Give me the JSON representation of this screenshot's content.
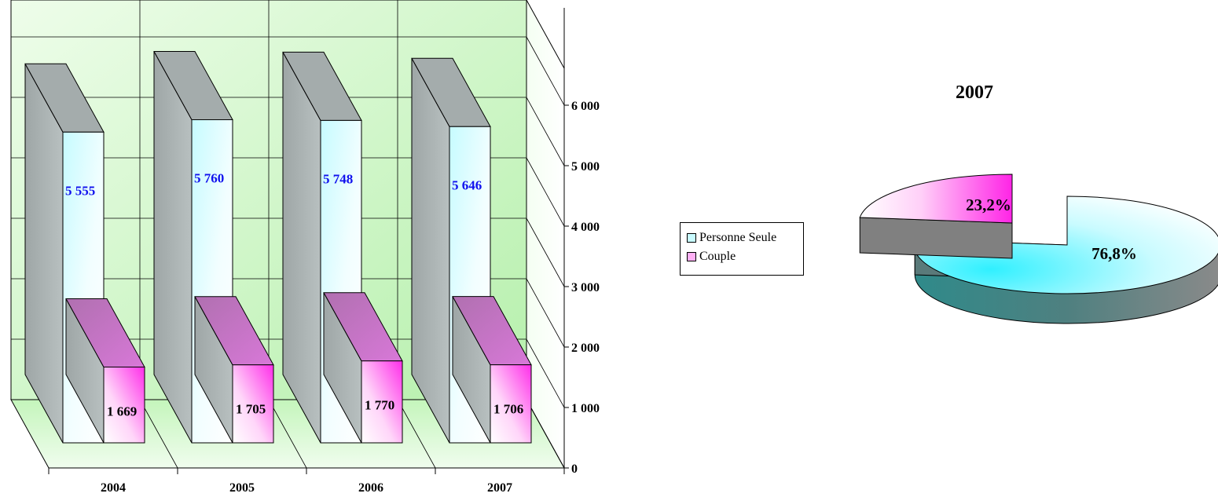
{
  "chart_data": [
    {
      "type": "bar",
      "categories": [
        "2004",
        "2005",
        "2006",
        "2007"
      ],
      "series": [
        {
          "name": "Personne Seule",
          "values": [
            5555,
            5760,
            5748,
            5646
          ],
          "labels": [
            "5 555",
            "5 760",
            "5 748",
            "5 646"
          ]
        },
        {
          "name": "Couple",
          "values": [
            1669,
            1705,
            1770,
            1706
          ],
          "labels": [
            "1 669",
            "1 705",
            "1 770",
            "1 706"
          ]
        }
      ],
      "yticks": [
        "0",
        "1 000",
        "2 000",
        "3 000",
        "4 000",
        "5 000",
        "6 000"
      ],
      "ylim": [
        0,
        6000
      ],
      "grid": true,
      "colors": {
        "personne": "#c8fbff",
        "couple": "#ff5cf0",
        "wall": "#b8f2b0",
        "side": "#a9a9a9"
      }
    },
    {
      "type": "pie",
      "title": "2007",
      "slices": [
        {
          "name": "Personne Seule",
          "value": 76.8,
          "label": "76,8%"
        },
        {
          "name": "Couple",
          "value": 23.2,
          "label": "23,2%"
        }
      ],
      "legend": "left",
      "colors": {
        "personne": "#3ff3ff",
        "couple": "#ff2ce8"
      }
    }
  ],
  "legend": {
    "items": [
      "Personne Seule",
      "Couple"
    ]
  }
}
